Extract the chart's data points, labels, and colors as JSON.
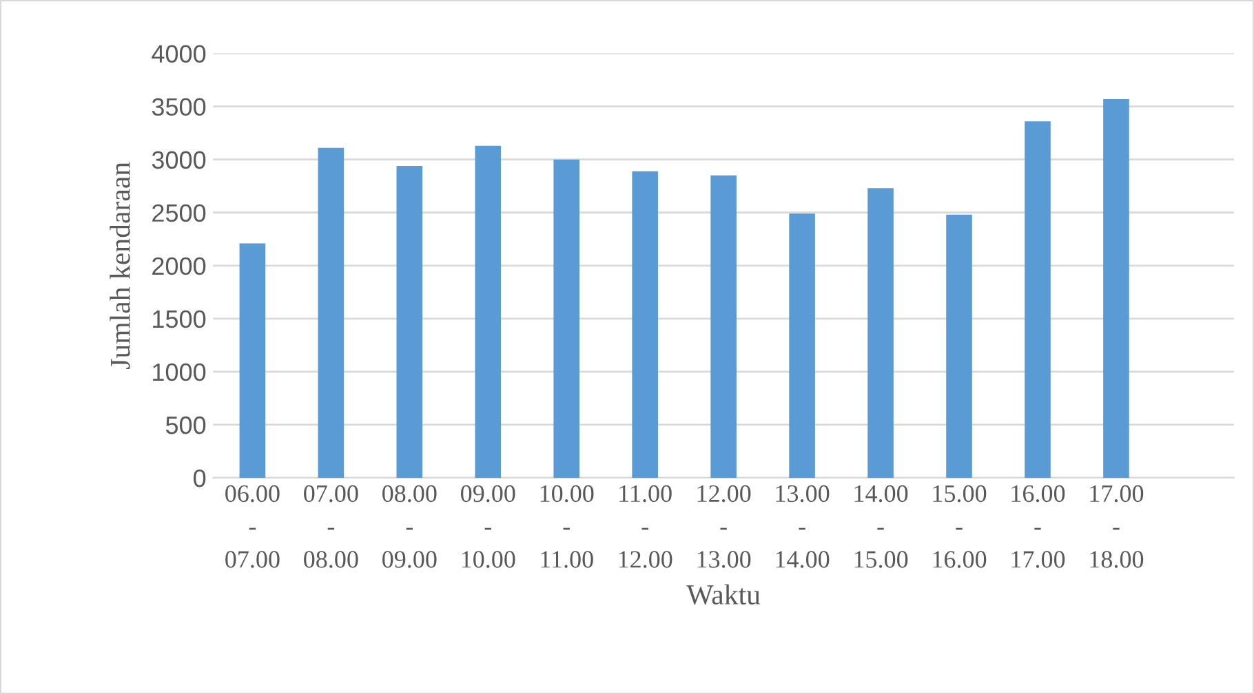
{
  "chart_data": {
    "type": "bar",
    "xlabel": "Waktu",
    "ylabel": "Jumlah kendaraan",
    "categories": [
      "06.00\n-\n07.00",
      "07.00\n-\n08.00",
      "08.00\n-\n09.00",
      "09.00\n-\n10.00",
      "10.00\n-\n11.00",
      "11.00\n-\n12.00",
      "12.00\n-\n13.00",
      "13.00\n-\n14.00",
      "14.00\n-\n15.00",
      "15.00\n-\n16.00",
      "16.00\n-\n17.00",
      "17.00\n-\n18.00",
      null
    ],
    "values": [
      2210,
      3110,
      2940,
      3130,
      3000,
      2890,
      2850,
      2490,
      2730,
      2480,
      3360,
      3570,
      null
    ],
    "color": "#5b9bd5",
    "ylim": [
      0,
      4000
    ],
    "yticks": [
      0,
      500,
      1000,
      1500,
      2000,
      2500,
      3000,
      3500,
      4000
    ],
    "grid": "y",
    "legend": false
  }
}
